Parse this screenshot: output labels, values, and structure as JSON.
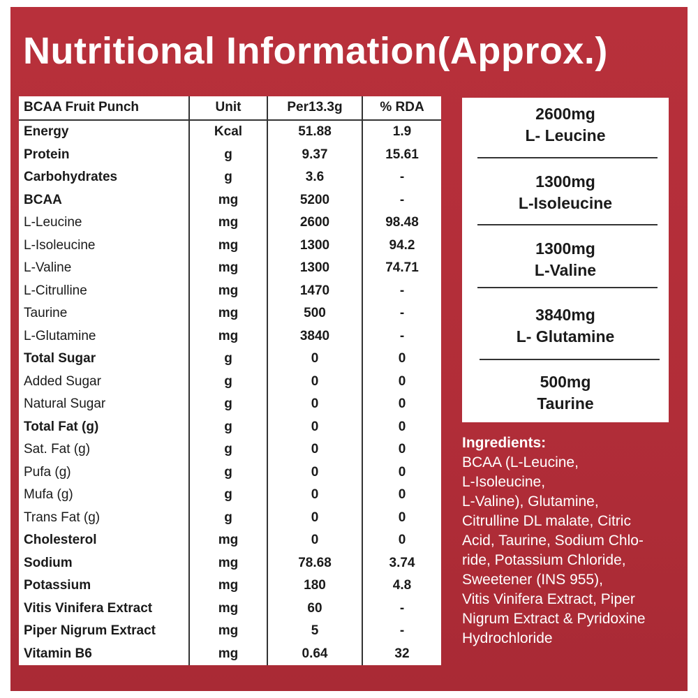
{
  "title": "Nutritional Information(Approx.)",
  "colors": {
    "background": "#b5303a",
    "panel": "#ffffff",
    "text": "#1a1a1a"
  },
  "table": {
    "headers": [
      "BCAA Fruit Punch",
      "Unit",
      "Per13.3g",
      "% RDA"
    ],
    "rows": [
      {
        "name": "Energy",
        "unit": "Kcal",
        "per": "51.88",
        "rda": "1.9",
        "bold": true
      },
      {
        "name": "Protein",
        "unit": "g",
        "per": "9.37",
        "rda": "15.61",
        "bold": true
      },
      {
        "name": "Carbohydrates",
        "unit": "g",
        "per": "3.6",
        "rda": "-",
        "bold": true
      },
      {
        "name": "BCAA",
        "unit": "mg",
        "per": "5200",
        "rda": "-",
        "bold": true
      },
      {
        "name": "L-Leucine",
        "unit": "mg",
        "per": "2600",
        "rda": "98.48",
        "bold": false
      },
      {
        "name": "L-Isoleucine",
        "unit": "mg",
        "per": "1300",
        "rda": "94.2",
        "bold": false
      },
      {
        "name": "L-Valine",
        "unit": "mg",
        "per": "1300",
        "rda": "74.71",
        "bold": false
      },
      {
        "name": "L-Citrulline",
        "unit": "mg",
        "per": "1470",
        "rda": "-",
        "bold": false
      },
      {
        "name": "Taurine",
        "unit": "mg",
        "per": "500",
        "rda": "-",
        "bold": false
      },
      {
        "name": "L-Glutamine",
        "unit": "mg",
        "per": "3840",
        "rda": "-",
        "bold": false
      },
      {
        "name": "Total Sugar",
        "unit": "g",
        "per": "0",
        "rda": "0",
        "bold": true
      },
      {
        "name": "Added Sugar",
        "unit": "g",
        "per": "0",
        "rda": "0",
        "bold": false
      },
      {
        "name": "Natural Sugar",
        "unit": "g",
        "per": "0",
        "rda": "0",
        "bold": false
      },
      {
        "name": "Total Fat (g)",
        "unit": "g",
        "per": "0",
        "rda": "0",
        "bold": true
      },
      {
        "name": "Sat. Fat (g)",
        "unit": "g",
        "per": "0",
        "rda": "0",
        "bold": false
      },
      {
        "name": "Pufa (g)",
        "unit": "g",
        "per": "0",
        "rda": "0",
        "bold": false
      },
      {
        "name": "Mufa (g)",
        "unit": "g",
        "per": "0",
        "rda": "0",
        "bold": false
      },
      {
        "name": "Trans Fat (g)",
        "unit": "g",
        "per": "0",
        "rda": "0",
        "bold": false
      },
      {
        "name": "Cholesterol",
        "unit": "mg",
        "per": "0",
        "rda": "0",
        "bold": true
      },
      {
        "name": "Sodium",
        "unit": "mg",
        "per": "78.68",
        "rda": "3.74",
        "bold": true
      },
      {
        "name": "Potassium",
        "unit": "mg",
        "per": "180",
        "rda": "4.8",
        "bold": true
      },
      {
        "name": "Vitis Vinifera Extract",
        "unit": "mg",
        "per": "60",
        "rda": "-",
        "bold": true
      },
      {
        "name": "Piper Nigrum Extract",
        "unit": "mg",
        "per": "5",
        "rda": "-",
        "bold": true
      },
      {
        "name": "Vitamin B6",
        "unit": "mg",
        "per": "0.64",
        "rda": "32",
        "bold": true
      }
    ]
  },
  "amounts": [
    {
      "amount": "2600mg",
      "label": "L- Leucine"
    },
    {
      "amount": "1300mg",
      "label": "L-Isoleucine"
    },
    {
      "amount": "1300mg",
      "label": "L-Valine"
    },
    {
      "amount": "3840mg",
      "label": "L- Glutamine"
    },
    {
      "amount": "500mg",
      "label": "Taurine"
    }
  ],
  "ingredients": {
    "heading": "Ingredients:",
    "lines": [
      "BCAA (L-Leucine,",
      "L-Isoleucine,",
      "L-Valine), Glutamine,",
      "Citrulline DL malate, Citric",
      "Acid, Taurine, Sodium Chlo-",
      "ride, Potassium Chloride,",
      "Sweetener (INS 955),",
      "Vitis Vinifera Extract, Piper",
      "Nigrum Extract & Pyridoxine",
      "Hydrochloride"
    ]
  }
}
